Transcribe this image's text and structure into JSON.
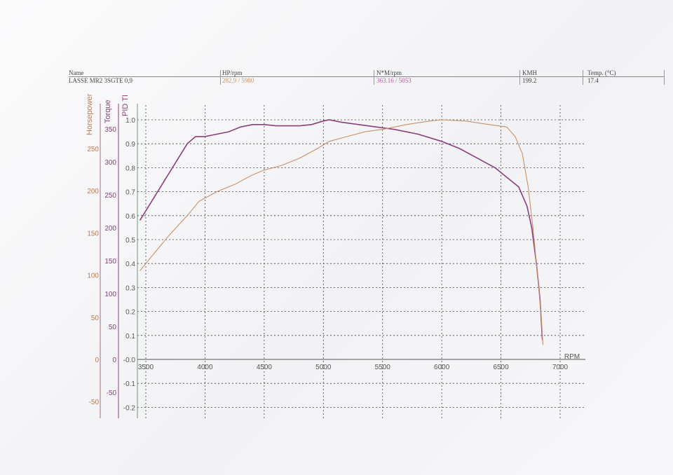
{
  "header": {
    "name_label": "Name",
    "name_value": "LASSE MR2 3SGTE 0,9",
    "hp_label": "HP/rpm",
    "hp_value": "282.9 / 5980",
    "nm_label": "N*M/rpm",
    "nm_value": "363.16 / 5053",
    "kmh_label": "KMH",
    "kmh_value": "199.2",
    "temp_label": "Temp. (°C)",
    "temp_value": "17.4"
  },
  "colors": {
    "hp": "#c8906a",
    "torque": "#8a3f7c",
    "pid": "#6d9a6d",
    "grid": "#444444"
  },
  "chart_data": {
    "type": "line",
    "title": "",
    "xlabel": "RPM",
    "xlim": [
      3450,
      7100
    ],
    "x_ticks": [
      3500,
      4000,
      4500,
      5000,
      5500,
      6000,
      6500,
      7000
    ],
    "axes": {
      "hp": {
        "label": "Horsepower",
        "ticks": [
          -50,
          0,
          50,
          100,
          150,
          200,
          250
        ]
      },
      "torque": {
        "label": "Torque",
        "ticks": [
          -50,
          0,
          50,
          100,
          150,
          200,
          250,
          300,
          350
        ]
      },
      "pid": {
        "label": "PID TI",
        "ticks": [
          "-0.2",
          "-0.1",
          "-0.0",
          "0.1",
          "0.2",
          "0.3",
          "0.4",
          "0.5",
          "0.6",
          "0.7",
          "0.8",
          "0.9",
          "1.0"
        ]
      }
    },
    "y_normalized_range": [
      -0.2,
      1.0
    ],
    "grid": true,
    "series": [
      {
        "name": "Torque",
        "points": [
          [
            3450,
            0.58
          ],
          [
            3550,
            0.66
          ],
          [
            3650,
            0.74
          ],
          [
            3750,
            0.82
          ],
          [
            3850,
            0.9
          ],
          [
            3920,
            0.93
          ],
          [
            4000,
            0.93
          ],
          [
            4100,
            0.94
          ],
          [
            4200,
            0.95
          ],
          [
            4300,
            0.97
          ],
          [
            4400,
            0.98
          ],
          [
            4500,
            0.98
          ],
          [
            4600,
            0.975
          ],
          [
            4700,
            0.975
          ],
          [
            4800,
            0.975
          ],
          [
            4900,
            0.98
          ],
          [
            5000,
            0.995
          ],
          [
            5050,
            1.0
          ],
          [
            5150,
            0.99
          ],
          [
            5300,
            0.98
          ],
          [
            5450,
            0.97
          ],
          [
            5600,
            0.96
          ],
          [
            5800,
            0.94
          ],
          [
            6000,
            0.91
          ],
          [
            6150,
            0.88
          ],
          [
            6300,
            0.84
          ],
          [
            6450,
            0.8
          ],
          [
            6550,
            0.76
          ],
          [
            6650,
            0.72
          ],
          [
            6720,
            0.64
          ],
          [
            6760,
            0.55
          ],
          [
            6800,
            0.4
          ],
          [
            6830,
            0.25
          ],
          [
            6850,
            0.08
          ]
        ]
      },
      {
        "name": "Horsepower",
        "points": [
          [
            3450,
            0.37
          ],
          [
            3550,
            0.43
          ],
          [
            3700,
            0.52
          ],
          [
            3850,
            0.6
          ],
          [
            3950,
            0.66
          ],
          [
            4100,
            0.7
          ],
          [
            4250,
            0.73
          ],
          [
            4400,
            0.77
          ],
          [
            4500,
            0.79
          ],
          [
            4650,
            0.81
          ],
          [
            4800,
            0.84
          ],
          [
            4950,
            0.88
          ],
          [
            5050,
            0.91
          ],
          [
            5200,
            0.93
          ],
          [
            5350,
            0.95
          ],
          [
            5500,
            0.96
          ],
          [
            5700,
            0.98
          ],
          [
            5900,
            0.995
          ],
          [
            6000,
            1.0
          ],
          [
            6200,
            0.995
          ],
          [
            6400,
            0.98
          ],
          [
            6550,
            0.97
          ],
          [
            6620,
            0.93
          ],
          [
            6680,
            0.86
          ],
          [
            6730,
            0.72
          ],
          [
            6770,
            0.55
          ],
          [
            6810,
            0.35
          ],
          [
            6840,
            0.18
          ],
          [
            6855,
            0.06
          ]
        ]
      }
    ]
  }
}
